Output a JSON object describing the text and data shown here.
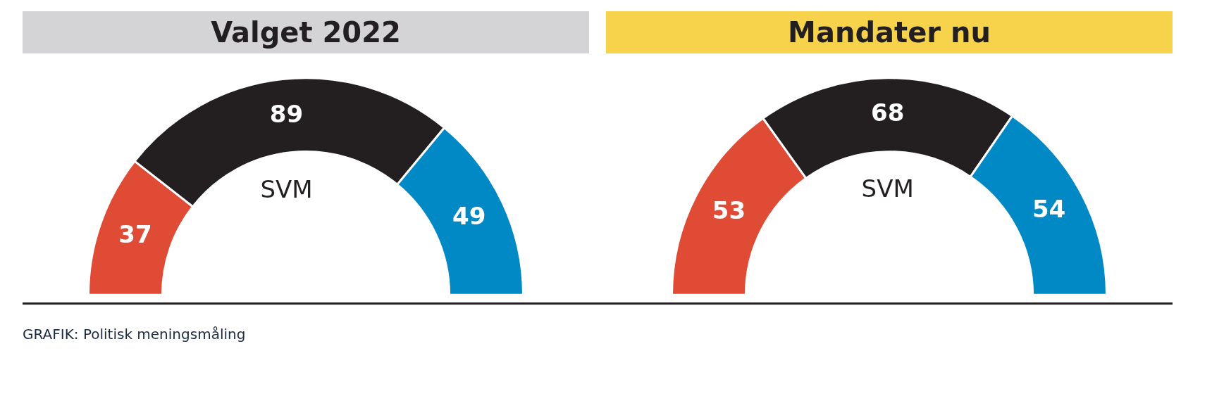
{
  "chart_data": [
    {
      "type": "donut",
      "title": "Valget 2022",
      "categories": [
        null,
        "SVM",
        null
      ],
      "values": [
        37,
        89,
        49
      ],
      "colors": [
        "#e04b36",
        "#231f20",
        "#0089c4"
      ],
      "data_labels": true,
      "legend": false
    },
    {
      "type": "donut",
      "title": "Mandater nu",
      "categories": [
        null,
        "SVM",
        null
      ],
      "values": [
        53,
        68,
        54
      ],
      "colors": [
        "#e04b36",
        "#231f20",
        "#0089c4"
      ],
      "data_labels": true,
      "legend": false,
      "annotations": [
        "GRAFIK: Politisk meningsmåling"
      ]
    }
  ]
}
